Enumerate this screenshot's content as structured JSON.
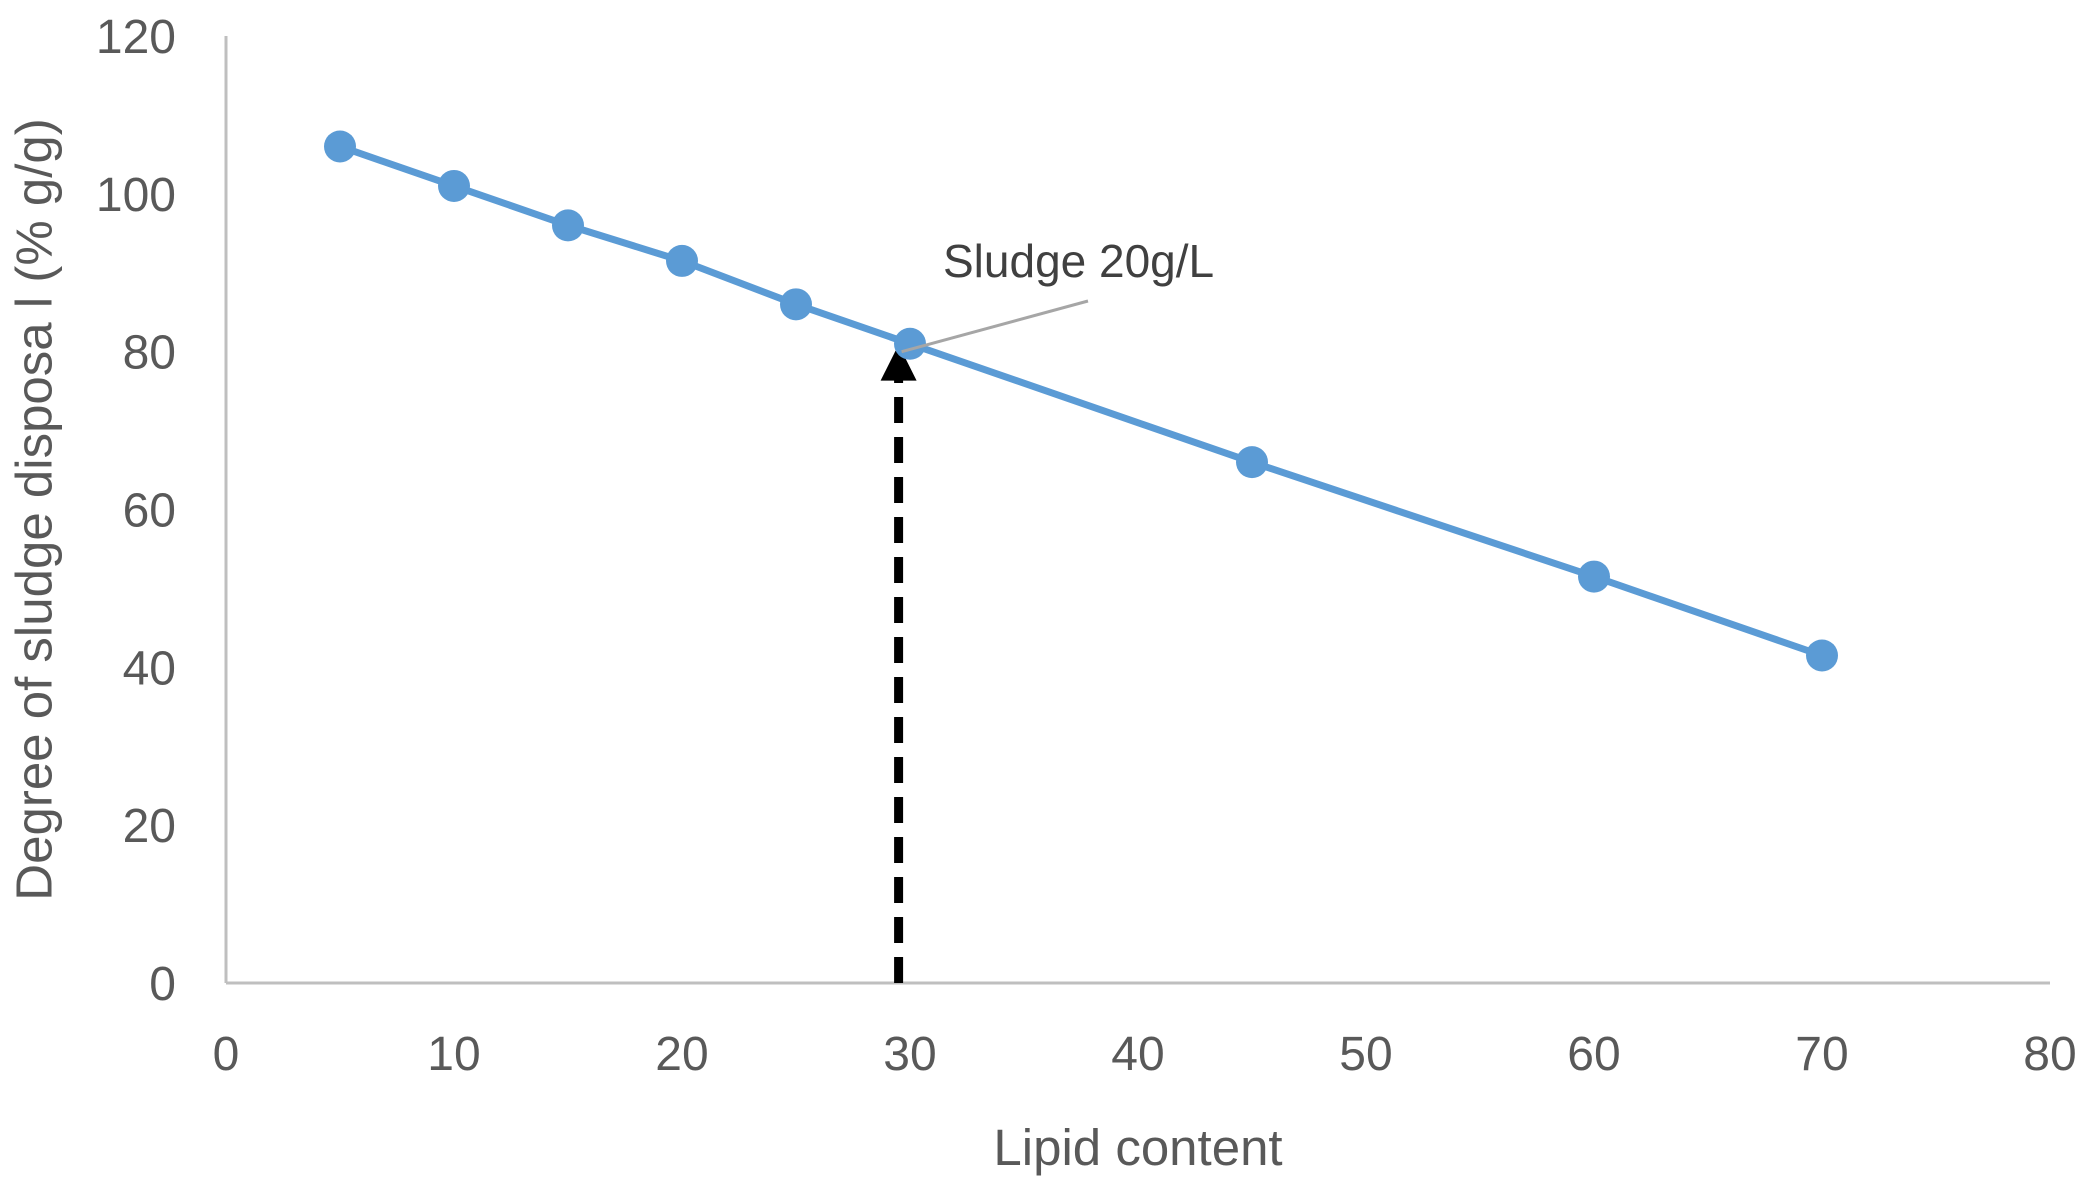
{
  "chart_data": {
    "type": "line",
    "xlabel": "Lipid content",
    "ylabel": "Degree of sludge disposa l (% g/g)",
    "xlim": [
      0,
      80
    ],
    "ylim": [
      0,
      120
    ],
    "x_ticks": [
      0,
      10,
      20,
      30,
      40,
      50,
      60,
      70,
      80
    ],
    "y_ticks": [
      0,
      20,
      40,
      60,
      80,
      100,
      120
    ],
    "grid": false,
    "series": [
      {
        "x": [
          5,
          10,
          15,
          20,
          25,
          30,
          45,
          60,
          70
        ],
        "y": [
          106,
          101,
          96,
          91.5,
          86,
          81,
          66,
          51.5,
          41.5
        ]
      }
    ],
    "annotations": [
      {
        "text": "Sludge 20g/L",
        "x": 29.5,
        "y": 80
      }
    ],
    "marker_line": {
      "x": 29.5,
      "from_y": 0,
      "to_y": 80
    },
    "colors": {
      "series": "#5b9bd5",
      "axis": "#bfbfbf",
      "leader": "#a6a6a6",
      "arrow": "#000000"
    }
  }
}
